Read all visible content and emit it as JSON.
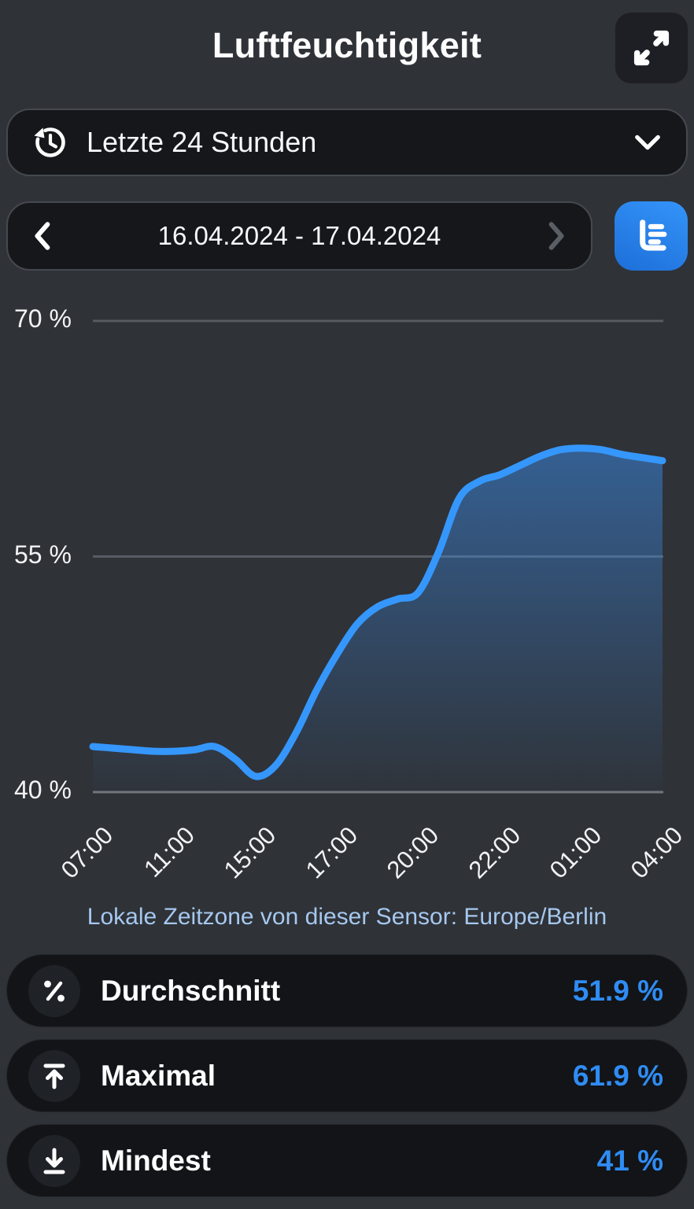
{
  "header": {
    "title": "Luftfeuchtigkeit",
    "expand_icon": "expand-icon"
  },
  "controls": {
    "range_selector": {
      "icon": "history-icon",
      "label": "Letzte 24 Stunden",
      "chevron": "chevron-down-icon"
    },
    "date_nav": {
      "prev_icon": "chevron-left-icon",
      "range": "16.04.2024 - 17.04.2024",
      "next_icon": "chevron-right-icon"
    },
    "chart_type_button": {
      "icon": "horizontal-bar-chart-icon"
    }
  },
  "chart_data": {
    "type": "area",
    "title": "Luftfeuchtigkeit",
    "unit": "%",
    "ylim": [
      40,
      70
    ],
    "yticks": [
      {
        "value": 70,
        "label": "70 %"
      },
      {
        "value": 55,
        "label": "55 %"
      },
      {
        "value": 40,
        "label": "40 %"
      }
    ],
    "xticks": [
      "07:00",
      "11:00",
      "15:00",
      "17:00",
      "20:00",
      "22:00",
      "01:00",
      "04:00"
    ],
    "x_encoding": "fraction of plot width, ticks evenly spaced in pixels",
    "grid": "horizontal-only",
    "legend": "none",
    "line_color": "#3597fc",
    "fill_gradient": [
      "rgba(59,143,240,0.5)",
      "rgba(59,143,240,0.02)"
    ],
    "series": [
      {
        "name": "Luftfeuchtigkeit",
        "points": [
          [
            0.0,
            42.9
          ],
          [
            0.036,
            42.8
          ],
          [
            0.071,
            42.7
          ],
          [
            0.107,
            42.6
          ],
          [
            0.143,
            42.6
          ],
          [
            0.179,
            42.7
          ],
          [
            0.214,
            42.9
          ],
          [
            0.25,
            42.1
          ],
          [
            0.286,
            41.0
          ],
          [
            0.321,
            41.7
          ],
          [
            0.357,
            43.8
          ],
          [
            0.393,
            46.5
          ],
          [
            0.429,
            48.8
          ],
          [
            0.464,
            50.7
          ],
          [
            0.5,
            51.8
          ],
          [
            0.536,
            52.3
          ],
          [
            0.571,
            52.7
          ],
          [
            0.607,
            55.3
          ],
          [
            0.643,
            58.7
          ],
          [
            0.679,
            59.8
          ],
          [
            0.714,
            60.2
          ],
          [
            0.75,
            60.8
          ],
          [
            0.786,
            61.4
          ],
          [
            0.821,
            61.8
          ],
          [
            0.857,
            61.9
          ],
          [
            0.893,
            61.8
          ],
          [
            0.929,
            61.5
          ],
          [
            0.964,
            61.3
          ],
          [
            1.0,
            61.1
          ]
        ]
      }
    ]
  },
  "timezone_note": "Lokale Zeitzone von dieser Sensor: Europe/Berlin",
  "stats": [
    {
      "icon": "percent-icon",
      "label": "Durchschnitt",
      "value": "51.9 %"
    },
    {
      "icon": "arrow-up-to-line-icon",
      "label": "Maximal",
      "value": "61.9 %"
    },
    {
      "icon": "arrow-down-to-line-icon",
      "label": "Mindest",
      "value": "41 %"
    }
  ],
  "colors": {
    "accent_blue": "#2f8cf3",
    "line_blue": "#3597fc",
    "note_blue": "#a5c8ef",
    "button_blue": "#2a86ee",
    "background": "#2f3237",
    "pill_background": "#15171a"
  }
}
